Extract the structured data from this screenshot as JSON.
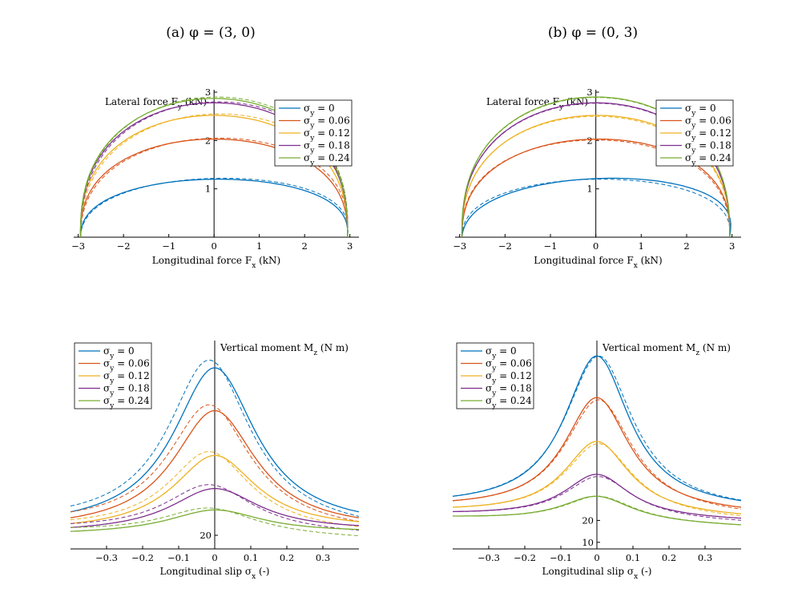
{
  "titles": {
    "left": "(a) φ = (3, 0)",
    "right": "(b) φ = (0, 3)"
  },
  "colors": [
    "#0072BD",
    "#D95319",
    "#EDB120",
    "#7E2F8E",
    "#77AC30"
  ],
  "chart_data": [
    {
      "type": "line",
      "panel": "top-left",
      "xlabel": "Longitudinal force F_x (kN)",
      "ylabel": "Lateral force F_y (kN)",
      "xlim": [
        -3.1,
        3.2
      ],
      "ylim": [
        0,
        3.05
      ],
      "xticks": [
        -3,
        -2,
        -1,
        0,
        1,
        2,
        3
      ],
      "xtick_labels": [
        "−3",
        "−2",
        "−1",
        "0",
        "1",
        "2",
        "3"
      ],
      "yticks": [
        1,
        2,
        3
      ],
      "ytick_labels": [
        "1",
        "2",
        "3"
      ],
      "legend": [
        "σ_y = 0",
        "σ_y = 0.06",
        "σ_y = 0.12",
        "σ_y = 0.18",
        "σ_y = 0.24"
      ],
      "legend_position": "top-right",
      "series": [
        {
          "name": "σ_y = 0",
          "style": "solid",
          "xmin": -2.95,
          "xmax": 2.95,
          "peak_y": 1.2,
          "peak_x": 0.15
        },
        {
          "name": "σ_y = 0",
          "style": "dashed",
          "xmin": -2.95,
          "xmax": 2.95,
          "peak_y": 1.22,
          "peak_x": 0.35
        },
        {
          "name": "σ_y = 0.06",
          "style": "solid",
          "xmin": -2.95,
          "xmax": 2.95,
          "peak_y": 2.03,
          "peak_x": 0.0
        },
        {
          "name": "σ_y = 0.06",
          "style": "dashed",
          "xmin": -2.95,
          "xmax": 2.95,
          "peak_y": 2.05,
          "peak_x": 0.2
        },
        {
          "name": "σ_y = 0.12",
          "style": "solid",
          "xmin": -2.95,
          "xmax": 2.95,
          "peak_y": 2.52,
          "peak_x": 0.0
        },
        {
          "name": "σ_y = 0.12",
          "style": "dashed",
          "xmin": -2.95,
          "xmax": 2.95,
          "peak_y": 2.55,
          "peak_x": 0.2
        },
        {
          "name": "σ_y = 0.18",
          "style": "solid",
          "xmin": -2.95,
          "xmax": 2.95,
          "peak_y": 2.78,
          "peak_x": 0.0
        },
        {
          "name": "σ_y = 0.18",
          "style": "dashed",
          "xmin": -2.95,
          "xmax": 2.95,
          "peak_y": 2.8,
          "peak_x": 0.15
        },
        {
          "name": "σ_y = 0.24",
          "style": "solid",
          "xmin": -2.95,
          "xmax": 2.95,
          "peak_y": 2.87,
          "peak_x": 0.0
        },
        {
          "name": "σ_y = 0.24",
          "style": "dashed",
          "xmin": -2.95,
          "xmax": 2.95,
          "peak_y": 2.9,
          "peak_x": 0.1
        }
      ]
    },
    {
      "type": "line",
      "panel": "top-right",
      "xlabel": "Longitudinal force F_x (kN)",
      "ylabel": "Lateral force F_y (kN)",
      "xlim": [
        -3.1,
        3.2
      ],
      "ylim": [
        0,
        3.05
      ],
      "xticks": [
        -3,
        -2,
        -1,
        0,
        1,
        2,
        3
      ],
      "xtick_labels": [
        "−3",
        "−2",
        "−1",
        "0",
        "1",
        "2",
        "3"
      ],
      "yticks": [
        1,
        2,
        3
      ],
      "ytick_labels": [
        "1",
        "2",
        "3"
      ],
      "legend": [
        "σ_y = 0",
        "σ_y = 0.06",
        "σ_y = 0.12",
        "σ_y = 0.18",
        "σ_y = 0.24"
      ],
      "legend_position": "top-right",
      "series": [
        {
          "name": "σ_y = 0",
          "style": "solid",
          "xmin": -2.95,
          "xmax": 2.95,
          "peak_y": 1.22,
          "peak_x": 0.6
        },
        {
          "name": "σ_y = 0",
          "style": "dashed",
          "xmin": -2.95,
          "xmax": 2.95,
          "peak_y": 1.2,
          "peak_x": 0.2
        },
        {
          "name": "σ_y = 0.06",
          "style": "solid",
          "xmin": -2.95,
          "xmax": 2.95,
          "peak_y": 2.03,
          "peak_x": 0.1
        },
        {
          "name": "σ_y = 0.06",
          "style": "dashed",
          "xmin": -2.95,
          "xmax": 2.95,
          "peak_y": 2.01,
          "peak_x": 0.0
        },
        {
          "name": "σ_y = 0.12",
          "style": "solid",
          "xmin": -2.95,
          "xmax": 2.95,
          "peak_y": 2.52,
          "peak_x": 0.05
        },
        {
          "name": "σ_y = 0.12",
          "style": "dashed",
          "xmin": -2.95,
          "xmax": 2.95,
          "peak_y": 2.5,
          "peak_x": 0.0
        },
        {
          "name": "σ_y = 0.18",
          "style": "solid",
          "xmin": -2.95,
          "xmax": 2.95,
          "peak_y": 2.78,
          "peak_x": 0.0
        },
        {
          "name": "σ_y = 0.18",
          "style": "dashed",
          "xmin": -2.95,
          "xmax": 2.95,
          "peak_y": 2.77,
          "peak_x": 0.0
        },
        {
          "name": "σ_y = 0.24",
          "style": "solid",
          "xmin": -2.95,
          "xmax": 2.95,
          "peak_y": 2.9,
          "peak_x": 0.0
        },
        {
          "name": "σ_y = 0.24",
          "style": "dashed",
          "xmin": -2.95,
          "xmax": 2.95,
          "peak_y": 2.89,
          "peak_x": 0.0
        }
      ]
    },
    {
      "type": "line",
      "panel": "bottom-left",
      "xlabel": "Longitudinal slip σ_x (-)",
      "ylabel": "Vertical moment M_z (N m)",
      "xlim": [
        -0.4,
        0.4
      ],
      "ylim": [
        13,
        120
      ],
      "xticks": [
        -0.3,
        -0.2,
        -0.1,
        0,
        0.1,
        0.2,
        0.3
      ],
      "xtick_labels": [
        "−0.3",
        "−0.2",
        "−0.1",
        "0",
        "0.1",
        "0.2",
        "0.3"
      ],
      "yticks": [
        20
      ],
      "ytick_labels": [
        "20"
      ],
      "legend": [
        "σ_y = 0",
        "σ_y = 0.06",
        "σ_y = 0.12",
        "σ_y = 0.18",
        "σ_y = 0.24"
      ],
      "legend_position": "top-left",
      "series": [
        {
          "name": "σ_y = 0",
          "style": "solid",
          "peak": 106,
          "edge_left": 32,
          "edge_right": 32,
          "width": 0.14,
          "peak_x": 0.0
        },
        {
          "name": "σ_y = 0",
          "style": "dashed",
          "peak": 110,
          "edge_left": 35,
          "edge_right": 31,
          "width": 0.14,
          "peak_x": -0.015
        },
        {
          "name": "σ_y = 0.06",
          "style": "solid",
          "peak": 84,
          "edge_left": 29,
          "edge_right": 29,
          "width": 0.14,
          "peak_x": 0.0
        },
        {
          "name": "σ_y = 0.06",
          "style": "dashed",
          "peak": 87,
          "edge_left": 32,
          "edge_right": 28,
          "width": 0.14,
          "peak_x": -0.015
        },
        {
          "name": "σ_y = 0.12",
          "style": "solid",
          "peak": 61,
          "edge_left": 26,
          "edge_right": 27,
          "width": 0.14,
          "peak_x": 0.0
        },
        {
          "name": "σ_y = 0.12",
          "style": "dashed",
          "peak": 63,
          "edge_left": 28,
          "edge_right": 25,
          "width": 0.14,
          "peak_x": -0.015
        },
        {
          "name": "σ_y = 0.18",
          "style": "solid",
          "peak": 44,
          "edge_left": 24,
          "edge_right": 25,
          "width": 0.15,
          "peak_x": 0.0
        },
        {
          "name": "σ_y = 0.18",
          "style": "dashed",
          "peak": 46,
          "edge_left": 26,
          "edge_right": 23,
          "width": 0.15,
          "peak_x": -0.015
        },
        {
          "name": "σ_y = 0.24",
          "style": "solid",
          "peak": 33,
          "edge_left": 22,
          "edge_right": 23,
          "width": 0.16,
          "peak_x": 0.0
        },
        {
          "name": "σ_y = 0.24",
          "style": "dashed",
          "peak": 34,
          "edge_left": 24,
          "edge_right": 20,
          "width": 0.16,
          "peak_x": -0.015
        }
      ]
    },
    {
      "type": "line",
      "panel": "bottom-right",
      "xlabel": "Longitudinal slip σ_x (-)",
      "ylabel": "Vertical moment M_z (N m)",
      "xlim": [
        -0.4,
        0.4
      ],
      "ylim": [
        7,
        102
      ],
      "xticks": [
        -0.3,
        -0.2,
        -0.1,
        0,
        0.1,
        0.2,
        0.3
      ],
      "xtick_labels": [
        "−0.3",
        "−0.2",
        "−0.1",
        "0",
        "0.1",
        "0.2",
        "0.3"
      ],
      "yticks": [
        10,
        20
      ],
      "ytick_labels": [
        "10",
        "20"
      ],
      "legend": [
        "σ_y = 0",
        "σ_y = 0.06",
        "σ_y = 0.12",
        "σ_y = 0.18",
        "σ_y = 0.24"
      ],
      "legend_position": "top-left",
      "series": [
        {
          "name": "σ_y = 0",
          "style": "solid",
          "peak": 95,
          "edge_left": 31,
          "edge_right": 29,
          "width": 0.11,
          "peak_x": 0.0
        },
        {
          "name": "σ_y = 0",
          "style": "dashed",
          "peak": 95,
          "edge_left": 31,
          "edge_right": 29,
          "width": 0.115,
          "peak_x": 0.005
        },
        {
          "name": "σ_y = 0.06",
          "style": "solid",
          "peak": 76,
          "edge_left": 29,
          "edge_right": 26,
          "width": 0.11,
          "peak_x": 0.0
        },
        {
          "name": "σ_y = 0.06",
          "style": "dashed",
          "peak": 75,
          "edge_left": 29,
          "edge_right": 25,
          "width": 0.115,
          "peak_x": 0.005
        },
        {
          "name": "σ_y = 0.12",
          "style": "solid",
          "peak": 56,
          "edge_left": 26,
          "edge_right": 23,
          "width": 0.11,
          "peak_x": 0.0
        },
        {
          "name": "σ_y = 0.12",
          "style": "dashed",
          "peak": 55,
          "edge_left": 26,
          "edge_right": 22,
          "width": 0.115,
          "peak_x": 0.005
        },
        {
          "name": "σ_y = 0.18",
          "style": "solid",
          "peak": 41,
          "edge_left": 24,
          "edge_right": 21,
          "width": 0.11,
          "peak_x": 0.0
        },
        {
          "name": "σ_y = 0.18",
          "style": "dashed",
          "peak": 40,
          "edge_left": 24,
          "edge_right": 20,
          "width": 0.115,
          "peak_x": 0.005
        },
        {
          "name": "σ_y = 0.24",
          "style": "solid",
          "peak": 31,
          "edge_left": 22,
          "edge_right": 18,
          "width": 0.12,
          "peak_x": 0.0
        },
        {
          "name": "σ_y = 0.24",
          "style": "dashed",
          "peak": 31,
          "edge_left": 22,
          "edge_right": 18,
          "width": 0.12,
          "peak_x": 0.005
        }
      ]
    }
  ]
}
